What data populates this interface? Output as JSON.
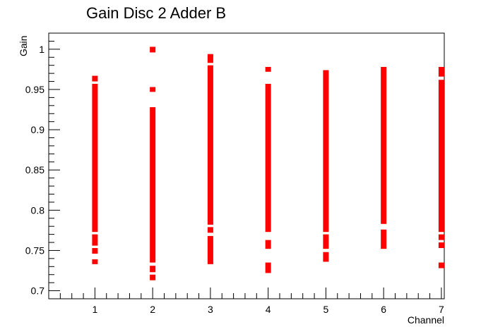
{
  "chart_data": {
    "type": "scatter",
    "title": "Gain Disc 2 Adder B",
    "xlabel": "Channel",
    "ylabel": "Gain",
    "xlim": [
      0.2,
      7.05
    ],
    "ylim": [
      0.69,
      1.02
    ],
    "x_ticks": [
      "1",
      "2",
      "3",
      "4",
      "5",
      "6",
      "7"
    ],
    "y_ticks": [
      "0.7",
      "0.75",
      "0.8",
      "0.85",
      "0.9",
      "0.95",
      "1"
    ],
    "marker_color": "#ff0000",
    "grid": false,
    "legend": "none",
    "series": [
      {
        "segments": [
          {
            "x": 1,
            "y0": 0.733,
            "y1": 0.739
          },
          {
            "x": 1,
            "y0": 0.746,
            "y1": 0.753
          },
          {
            "x": 1,
            "y0": 0.756,
            "y1": 0.77
          },
          {
            "x": 1,
            "y0": 0.773,
            "y1": 0.957
          },
          {
            "x": 1,
            "y0": 0.96,
            "y1": 0.967
          },
          {
            "x": 2,
            "y0": 0.713,
            "y1": 0.72
          },
          {
            "x": 2,
            "y0": 0.723,
            "y1": 0.731
          },
          {
            "x": 2,
            "y0": 0.735,
            "y1": 0.928
          },
          {
            "x": 2,
            "y0": 0.947,
            "y1": 0.953
          },
          {
            "x": 2,
            "y0": 0.996,
            "y1": 1.003
          },
          {
            "x": 3,
            "y0": 0.733,
            "y1": 0.768
          },
          {
            "x": 3,
            "y0": 0.772,
            "y1": 0.779
          },
          {
            "x": 3,
            "y0": 0.782,
            "y1": 0.98
          },
          {
            "x": 3,
            "y0": 0.983,
            "y1": 0.994
          },
          {
            "x": 4,
            "y0": 0.722,
            "y1": 0.735
          },
          {
            "x": 4,
            "y0": 0.752,
            "y1": 0.763
          },
          {
            "x": 4,
            "y0": 0.773,
            "y1": 0.957
          },
          {
            "x": 4,
            "y0": 0.972,
            "y1": 0.978
          },
          {
            "x": 5,
            "y0": 0.736,
            "y1": 0.748
          },
          {
            "x": 5,
            "y0": 0.752,
            "y1": 0.77
          },
          {
            "x": 5,
            "y0": 0.773,
            "y1": 0.974
          },
          {
            "x": 6,
            "y0": 0.752,
            "y1": 0.776
          },
          {
            "x": 6,
            "y0": 0.783,
            "y1": 0.978
          },
          {
            "x": 7,
            "y0": 0.728,
            "y1": 0.735
          },
          {
            "x": 7,
            "y0": 0.753,
            "y1": 0.76
          },
          {
            "x": 7,
            "y0": 0.763,
            "y1": 0.77
          },
          {
            "x": 7,
            "y0": 0.773,
            "y1": 0.962
          },
          {
            "x": 7,
            "y0": 0.966,
            "y1": 0.978
          }
        ]
      }
    ]
  }
}
